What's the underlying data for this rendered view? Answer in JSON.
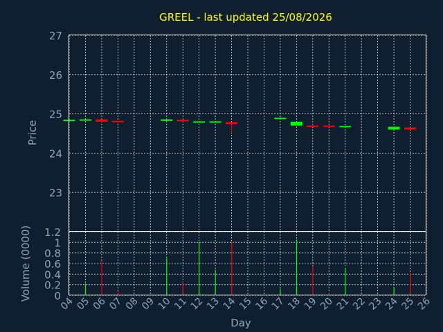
{
  "chart_data": {
    "type": "candlestick",
    "title": "GREEL - last updated 25/08/2026",
    "ylabel_price": "Price",
    "ylabel_volume": "Volume (0000)",
    "xlabel": "Day",
    "price_ylim": [
      22.0,
      27.0
    ],
    "price_yticks": [
      "23",
      "24",
      "25",
      "26",
      "27"
    ],
    "volume_ylim": [
      0,
      1.2
    ],
    "volume_yticks": [
      "0",
      "0.2",
      "0.4",
      "0.6",
      "0.8",
      "1",
      "1.2"
    ],
    "x_ticks": [
      "04",
      "05",
      "06",
      "07",
      "08",
      "09",
      "10",
      "11",
      "12",
      "13",
      "14",
      "15",
      "16",
      "17",
      "18",
      "19",
      "20",
      "21",
      "22",
      "23",
      "24",
      "25",
      "26"
    ],
    "grid": true,
    "up_color": "#00ff00",
    "down_color": "#ff0000",
    "candles": [
      {
        "day": "04",
        "open": 24.83,
        "close": 24.85,
        "high": 24.86,
        "low": 24.82,
        "volume": 0.0,
        "dir": "up"
      },
      {
        "day": "05",
        "open": 24.84,
        "close": 24.86,
        "high": 24.87,
        "low": 24.83,
        "volume": 0.22,
        "dir": "up"
      },
      {
        "day": "06",
        "open": 24.86,
        "close": 24.8,
        "high": 24.86,
        "low": 24.79,
        "volume": 0.65,
        "dir": "down"
      },
      {
        "day": "07",
        "open": 24.82,
        "close": 24.8,
        "high": 24.83,
        "low": 24.79,
        "volume": 0.08,
        "dir": "down"
      },
      {
        "day": "10",
        "open": 24.82,
        "close": 24.86,
        "high": 24.87,
        "low": 24.81,
        "volume": 0.7,
        "dir": "up"
      },
      {
        "day": "11",
        "open": 24.85,
        "close": 24.81,
        "high": 24.85,
        "low": 24.8,
        "volume": 0.25,
        "dir": "down"
      },
      {
        "day": "12",
        "open": 24.79,
        "close": 24.81,
        "high": 24.81,
        "low": 24.78,
        "volume": 1.0,
        "dir": "up"
      },
      {
        "day": "13",
        "open": 24.79,
        "close": 24.81,
        "high": 24.81,
        "low": 24.78,
        "volume": 0.48,
        "dir": "up"
      },
      {
        "day": "14",
        "open": 24.79,
        "close": 24.74,
        "high": 24.79,
        "low": 24.52,
        "volume": 1.0,
        "dir": "down"
      },
      {
        "day": "17",
        "open": 24.88,
        "close": 24.9,
        "high": 24.91,
        "low": 24.88,
        "volume": 0.12,
        "dir": "up"
      },
      {
        "day": "18",
        "open": 24.7,
        "close": 24.8,
        "high": 24.8,
        "low": 24.7,
        "volume": 1.05,
        "dir": "up"
      },
      {
        "day": "19",
        "open": 24.7,
        "close": 24.67,
        "high": 24.7,
        "low": 24.66,
        "volume": 0.55,
        "dir": "down"
      },
      {
        "day": "20",
        "open": 24.7,
        "close": 24.67,
        "high": 24.7,
        "low": 24.66,
        "volume": 0.05,
        "dir": "down"
      },
      {
        "day": "21",
        "open": 24.66,
        "close": 24.69,
        "high": 24.7,
        "low": 24.65,
        "volume": 0.52,
        "dir": "up"
      },
      {
        "day": "24",
        "open": 24.6,
        "close": 24.67,
        "high": 24.68,
        "low": 24.59,
        "volume": 0.14,
        "dir": "up"
      },
      {
        "day": "25",
        "open": 24.65,
        "close": 24.6,
        "high": 24.65,
        "low": 24.59,
        "volume": 0.43,
        "dir": "down"
      }
    ]
  }
}
